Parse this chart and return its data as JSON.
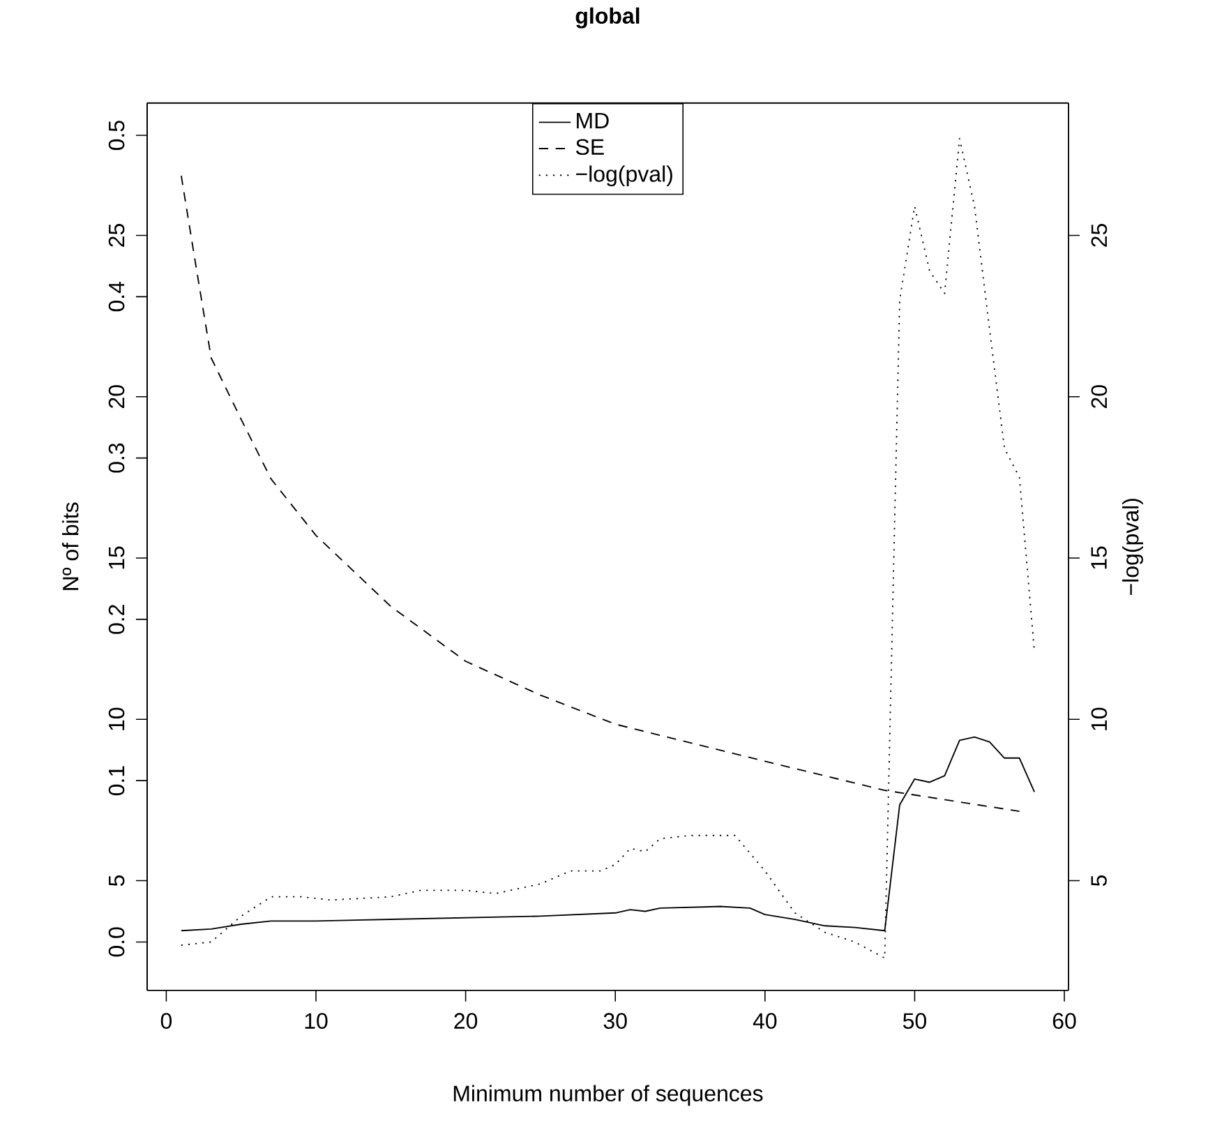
{
  "chart_data": {
    "type": "line",
    "title": "global",
    "xlabel": "Minimum number of sequences",
    "ylabel": "Nº of bits",
    "y2label": "−log(pval)",
    "xlim": [
      -1.28,
      60.28
    ],
    "xticks": [
      0,
      10,
      20,
      30,
      40,
      50,
      60
    ],
    "ylim": [
      -0.03,
      0.52
    ],
    "yticks": [
      {
        "value": 0,
        "label": "0.0"
      },
      0.1,
      0.2,
      0.3,
      0.4,
      0.5
    ],
    "y2lim": [
      1.6,
      29.1
    ],
    "y2ticks": [
      5,
      10,
      15,
      20,
      25
    ],
    "y3lim": [
      1.6,
      29.1
    ],
    "y3ticks": [
      5,
      10,
      15,
      20,
      25
    ],
    "legend": "top",
    "series": [
      {
        "name": "MD",
        "color": "#000000",
        "line_style": "solid",
        "axis": "y",
        "x": [
          1,
          3,
          5,
          7,
          10,
          15,
          20,
          25,
          30,
          31,
          32,
          33,
          37,
          39,
          40,
          42,
          44,
          46,
          48,
          49,
          50,
          51,
          52,
          53,
          54,
          55,
          56,
          57,
          58
        ],
        "values": [
          0.007,
          0.008,
          0.011,
          0.013,
          0.013,
          0.014,
          0.015,
          0.016,
          0.018,
          0.02,
          0.019,
          0.021,
          0.022,
          0.021,
          0.017,
          0.014,
          0.01,
          0.009,
          0.007,
          0.085,
          0.101,
          0.099,
          0.103,
          0.125,
          0.127,
          0.124,
          0.114,
          0.114,
          0.093
        ]
      },
      {
        "name": "SE",
        "color": "#000000",
        "line_style": "dashed",
        "axis": "y",
        "x": [
          1,
          2,
          3,
          5,
          7,
          10,
          15,
          20,
          25,
          30,
          40,
          48,
          57
        ],
        "values": [
          0.475,
          0.418,
          0.362,
          0.324,
          0.287,
          0.252,
          0.208,
          0.174,
          0.153,
          0.135,
          0.112,
          0.094,
          0.081
        ]
      },
      {
        "name": "−log(pval)",
        "color": "#000000",
        "line_style": "dotted",
        "axis": "y2",
        "x": [
          1,
          3,
          5,
          7,
          9,
          11,
          15,
          17,
          20,
          22,
          25,
          27,
          29,
          30,
          31,
          32,
          33,
          35,
          38,
          40,
          42,
          44,
          46,
          48,
          49,
          50,
          51,
          52,
          53,
          54,
          55,
          56,
          57,
          58
        ],
        "values": [
          3.0,
          3.1,
          3.9,
          4.5,
          4.5,
          4.4,
          4.5,
          4.7,
          4.7,
          4.6,
          4.9,
          5.3,
          5.3,
          5.5,
          6.0,
          5.9,
          6.3,
          6.4,
          6.4,
          5.3,
          4.0,
          3.4,
          3.1,
          2.6,
          23.0,
          25.9,
          23.9,
          23.2,
          28.0,
          25.9,
          22.1,
          18.4,
          17.5,
          12.1
        ]
      }
    ]
  }
}
